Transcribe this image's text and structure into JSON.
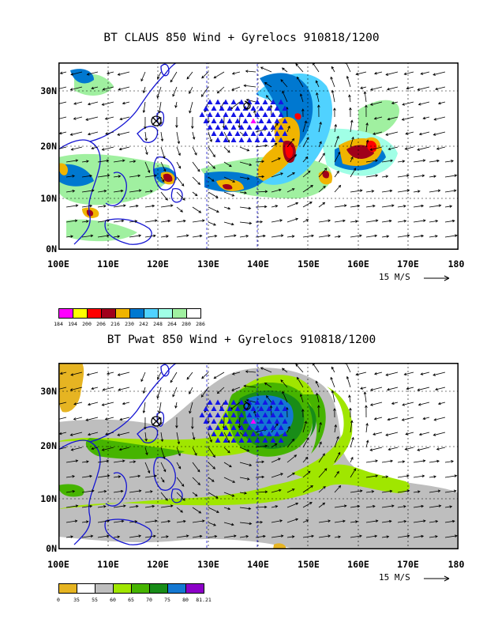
{
  "panels": [
    {
      "title": "BT CLAUS 850 Wind + Gyrelocs 910818/1200",
      "y_labels": [
        "30N",
        "20N",
        "10N",
        "0N"
      ],
      "x_labels": [
        "100E",
        "110E",
        "120E",
        "130E",
        "140E",
        "150E",
        "160E",
        "170E",
        "180"
      ],
      "ref_vector": "15 M/S",
      "legend": {
        "labels": [
          "184",
          "194",
          "200",
          "206",
          "216",
          "230",
          "242",
          "248",
          "264",
          "280",
          "286"
        ],
        "colors": [
          "#ff00ff",
          "#ffff00",
          "#ff0000",
          "#a0001a",
          "#f0b400",
          "#0078d0",
          "#50d2ff",
          "#a0ffe6",
          "#a0f0a0",
          "#ffffff"
        ]
      }
    },
    {
      "title": "BT Pwat 850 Wind + Gyrelocs 910818/1200",
      "y_labels": [
        "30N",
        "20N",
        "10N",
        "0N"
      ],
      "x_labels": [
        "100E",
        "110E",
        "120E",
        "130E",
        "140E",
        "150E",
        "160E",
        "170E",
        "180"
      ],
      "ref_vector": "15 M/S",
      "legend": {
        "labels": [
          "0",
          "35",
          "55",
          "60",
          "65",
          "70",
          "75",
          "80",
          "81.21"
        ],
        "colors": [
          "#e6b422",
          "#ffffff",
          "#bebebe",
          "#a0e600",
          "#46b400",
          "#188c18",
          "#1478d2",
          "#8c00c8"
        ]
      }
    }
  ]
}
